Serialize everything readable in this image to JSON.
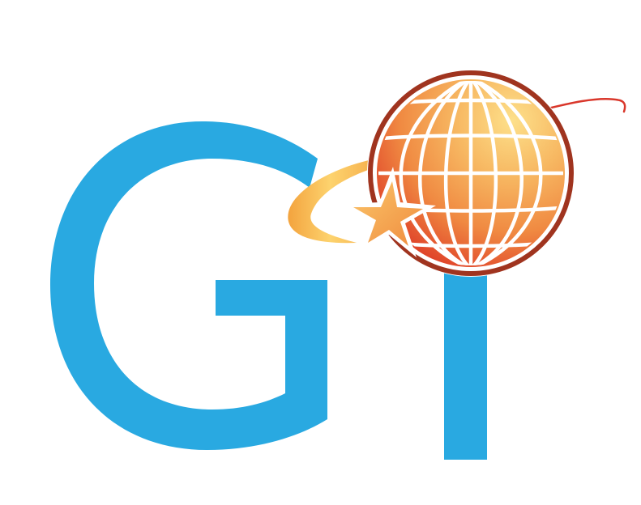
{
  "logo": {
    "text": "GI",
    "colors": {
      "letters": "#29a9e1",
      "globe_light": "#fbd27a",
      "globe_mid": "#f4a04a",
      "globe_dark": "#e2542a",
      "globe_ring": "#a0341f",
      "orbit_light": "#fcd06a",
      "orbit_dark": "#f0a03c",
      "star_fill": "#f5a84a",
      "grid_lines": "#ffffff",
      "tail_line": "#d9362a"
    },
    "icons": [
      "globe-icon",
      "star-icon",
      "orbit-swoosh-icon"
    ]
  }
}
